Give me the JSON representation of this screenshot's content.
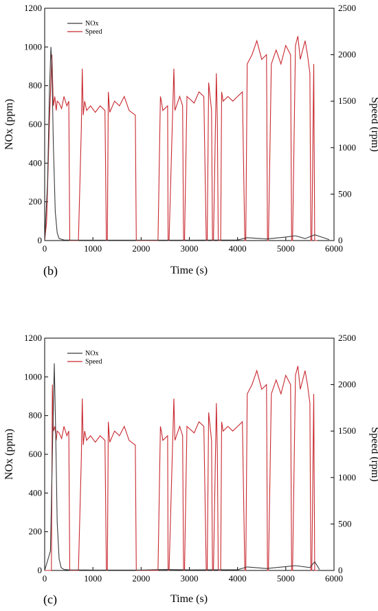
{
  "colors": {
    "nox": "#3a3a3a",
    "speed": "#c8282f"
  },
  "chart_data": [
    {
      "type": "line",
      "panel_label": "(b)",
      "xlabel": "Time (s)",
      "ylabel": "NOx (ppm)",
      "y2label": "Speed (rpm)",
      "xlim": [
        0,
        6000
      ],
      "ylim": [
        0,
        1200
      ],
      "y2lim": [
        0,
        2500
      ],
      "xticks": [
        "0",
        "1000",
        "2000",
        "3000",
        "4000",
        "5000",
        "6000"
      ],
      "yticks": [
        "0",
        "200",
        "400",
        "600",
        "800",
        "1000",
        "1200"
      ],
      "y2ticks": [
        "0",
        "500",
        "1000",
        "1500",
        "2000",
        "2500"
      ],
      "legend": [
        "NOx",
        "Speed"
      ],
      "series": [
        {
          "name": "NOx",
          "axis": "left",
          "x": [
            0,
            60,
            100,
            130,
            150,
            180,
            220,
            260,
            300,
            400,
            600,
            1000,
            2000,
            3000,
            4000,
            4200,
            4600,
            5000,
            5200,
            5400,
            5600,
            5900
          ],
          "y": [
            0,
            300,
            780,
            1000,
            900,
            500,
            150,
            40,
            10,
            3,
            2,
            2,
            2,
            2,
            3,
            15,
            8,
            18,
            25,
            10,
            30,
            5
          ]
        },
        {
          "name": "Speed",
          "axis": "right",
          "x": [
            0,
            40,
            100,
            150,
            180,
            210,
            240,
            260,
            300,
            350,
            400,
            460,
            500,
            520,
            540,
            700,
            760,
            780,
            800,
            830,
            870,
            950,
            1050,
            1150,
            1250,
            1280,
            1300,
            1320,
            1350,
            1450,
            1550,
            1650,
            1750,
            1880,
            1900,
            1920,
            2350,
            2400,
            2420,
            2450,
            2550,
            2560,
            2580,
            2650,
            2680,
            2700,
            2800,
            2860,
            2880,
            2900,
            2950,
            3100,
            3200,
            3300,
            3350,
            3370,
            3400,
            3460,
            3480,
            3500,
            3560,
            3580,
            3600,
            3650,
            3670,
            3700,
            3800,
            3900,
            4000,
            4100,
            4150,
            4170,
            4200,
            4300,
            4400,
            4500,
            4600,
            4620,
            4640,
            4700,
            4800,
            4900,
            5000,
            5100,
            5120,
            5140,
            5200,
            5250,
            5300,
            5400,
            5450,
            5500,
            5520,
            5540,
            5580,
            5600,
            5650
          ],
          "y": [
            0,
            200,
            1300,
            2000,
            1450,
            1550,
            1400,
            1500,
            1480,
            1420,
            1550,
            1450,
            1500,
            0,
            0,
            0,
            1200,
            1850,
            1350,
            1500,
            1400,
            1450,
            1380,
            1450,
            1400,
            0,
            0,
            1600,
            1380,
            1500,
            1450,
            1550,
            1400,
            1350,
            0,
            0,
            0,
            1550,
            1500,
            1400,
            1450,
            0,
            0,
            1300,
            1850,
            1400,
            1550,
            1450,
            0,
            0,
            1550,
            1480,
            1600,
            1550,
            0,
            0,
            1700,
            1400,
            0,
            0,
            1800,
            1300,
            0,
            0,
            1600,
            1500,
            1550,
            1500,
            1550,
            1600,
            0,
            0,
            1900,
            2000,
            2150,
            1950,
            2000,
            0,
            0,
            1900,
            2050,
            1900,
            2100,
            2000,
            0,
            0,
            2100,
            2200,
            1950,
            2150,
            2000,
            1800,
            0,
            0,
            1900,
            0,
            0
          ]
        }
      ]
    },
    {
      "type": "line",
      "panel_label": "(c)",
      "xlabel": "Time (s)",
      "ylabel": "NOx (ppm)",
      "y2label": "Speed (rpm)",
      "xlim": [
        0,
        6000
      ],
      "ylim": [
        0,
        1200
      ],
      "y2lim": [
        0,
        2500
      ],
      "xticks": [
        "0",
        "1000",
        "2000",
        "3000",
        "4000",
        "5000",
        "6000"
      ],
      "yticks": [
        "0",
        "200",
        "400",
        "600",
        "800",
        "1000",
        "1200"
      ],
      "y2ticks": [
        "0",
        "500",
        "1000",
        "1500",
        "2000",
        "2500"
      ],
      "legend": [
        "NOx",
        "Speed"
      ],
      "series": [
        {
          "name": "NOx",
          "axis": "left",
          "x": [
            0,
            120,
            160,
            200,
            230,
            260,
            300,
            340,
            400,
            500,
            1000,
            2000,
            2500,
            3000,
            4000,
            4200,
            4600,
            5000,
            5200,
            5500,
            5600,
            5700
          ],
          "y": [
            0,
            100,
            600,
            1070,
            700,
            250,
            60,
            15,
            5,
            3,
            2,
            2,
            5,
            3,
            4,
            18,
            10,
            20,
            25,
            15,
            45,
            5
          ]
        },
        {
          "name": "Speed",
          "axis": "right",
          "x": [
            0,
            140,
            160,
            180,
            210,
            240,
            260,
            300,
            350,
            400,
            460,
            500,
            520,
            540,
            700,
            760,
            780,
            800,
            830,
            870,
            950,
            1050,
            1150,
            1250,
            1280,
            1300,
            1320,
            1350,
            1450,
            1550,
            1650,
            1750,
            1880,
            1900,
            1920,
            2350,
            2400,
            2420,
            2450,
            2550,
            2560,
            2580,
            2650,
            2680,
            2700,
            2800,
            2860,
            2880,
            2900,
            2950,
            3100,
            3200,
            3300,
            3350,
            3370,
            3400,
            3460,
            3480,
            3500,
            3560,
            3580,
            3600,
            3650,
            3670,
            3700,
            3800,
            3900,
            4000,
            4100,
            4150,
            4170,
            4200,
            4300,
            4400,
            4500,
            4600,
            4620,
            4640,
            4700,
            4800,
            4900,
            5000,
            5100,
            5120,
            5140,
            5200,
            5250,
            5300,
            5400,
            5450,
            5500,
            5520,
            5540,
            5580,
            5600,
            5650
          ],
          "y": [
            0,
            0,
            2000,
            1500,
            1550,
            1400,
            1500,
            1480,
            1420,
            1550,
            1450,
            1500,
            0,
            0,
            0,
            1200,
            1850,
            1350,
            1500,
            1400,
            1450,
            1380,
            1450,
            1400,
            0,
            0,
            1600,
            1380,
            1500,
            1450,
            1550,
            1400,
            1350,
            0,
            0,
            0,
            1550,
            1500,
            1400,
            1450,
            0,
            0,
            1300,
            1850,
            1400,
            1550,
            1450,
            0,
            0,
            1550,
            1480,
            1600,
            1550,
            0,
            0,
            1700,
            1400,
            0,
            0,
            1800,
            1300,
            0,
            0,
            1600,
            1500,
            1550,
            1500,
            1550,
            1600,
            0,
            0,
            1900,
            2000,
            2150,
            1950,
            2000,
            0,
            0,
            1900,
            2050,
            1900,
            2100,
            2000,
            0,
            0,
            2100,
            2200,
            1950,
            2150,
            2000,
            1800,
            0,
            0,
            1900,
            0,
            0
          ]
        }
      ]
    }
  ]
}
